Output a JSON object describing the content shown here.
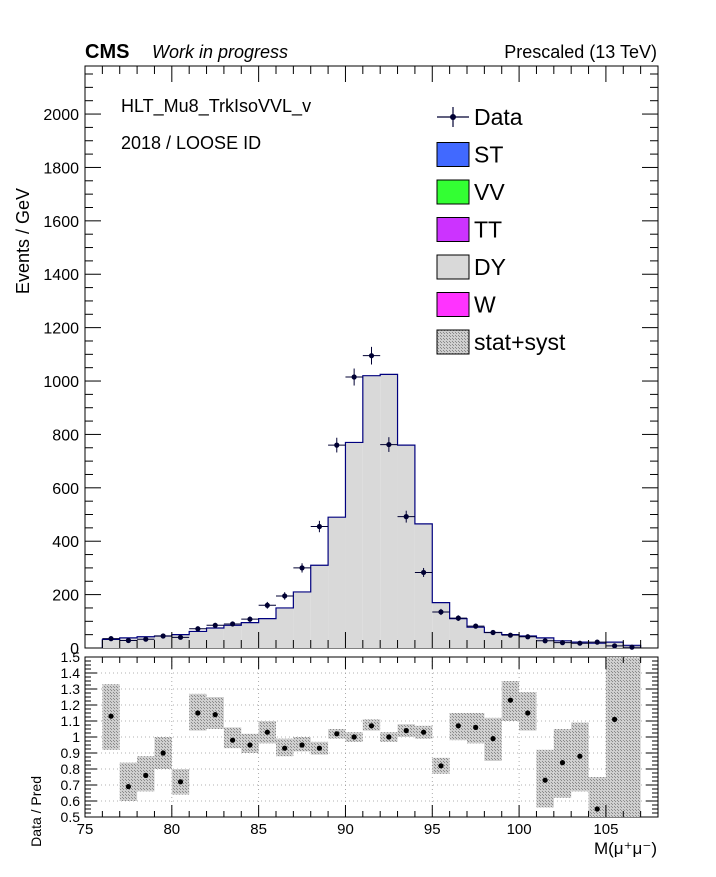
{
  "header": {
    "experiment": "CMS",
    "status": "Work in progress",
    "energy": "Prescaled (13 TeV)"
  },
  "annotations": {
    "trigger": "HLT_Mu8_TrkIsoVVL_v",
    "selection": "2018 / LOOSE ID"
  },
  "legend": [
    {
      "label": "Data",
      "kind": "marker",
      "color": "#000033"
    },
    {
      "label": "ST",
      "kind": "box",
      "color": "#4169ff"
    },
    {
      "label": "VV",
      "kind": "box",
      "color": "#33ff33"
    },
    {
      "label": "TT",
      "kind": "box",
      "color": "#cc33ff"
    },
    {
      "label": "DY",
      "kind": "box",
      "color": "#d9d9d9"
    },
    {
      "label": "W",
      "kind": "box",
      "color": "#ff33ff"
    },
    {
      "label": "stat+syst",
      "kind": "hatch",
      "color": "#bbbbbb"
    }
  ],
  "chart_data": [
    {
      "type": "bar",
      "ylabel": "Events / GeV",
      "xlim": [
        75,
        108
      ],
      "ylim": [
        0,
        2180
      ],
      "yticks": [
        0,
        200,
        400,
        600,
        800,
        1000,
        1200,
        1400,
        1600,
        1800,
        2000
      ],
      "bin_edges": [
        76,
        77,
        78,
        79,
        80,
        81,
        82,
        83,
        84,
        85,
        86,
        87,
        88,
        89,
        90,
        91,
        92,
        93,
        94,
        95,
        96,
        97,
        98,
        99,
        100,
        101,
        102,
        103,
        104,
        105,
        106,
        107
      ],
      "series": [
        {
          "name": "DY",
          "values": [
            32,
            38,
            42,
            45,
            50,
            62,
            75,
            85,
            95,
            110,
            150,
            210,
            310,
            490,
            770,
            1020,
            1025,
            760,
            465,
            170,
            110,
            78,
            58,
            50,
            45,
            38,
            27,
            22,
            18,
            22,
            10
          ]
        },
        {
          "name": "Data",
          "values": [
            35,
            28,
            33,
            45,
            40,
            72,
            85,
            90,
            108,
            160,
            195,
            300,
            455,
            760,
            1015,
            1095,
            762,
            492,
            283,
            135,
            112,
            82,
            58,
            48,
            42,
            27,
            20,
            18,
            22,
            8,
            3
          ]
        }
      ]
    },
    {
      "type": "scatter",
      "xlabel": "M(μ⁺μ⁻)",
      "ylabel": "Data / Pred",
      "xlim": [
        75,
        108
      ],
      "ylim": [
        0.5,
        1.5
      ],
      "xticks": [
        75,
        80,
        85,
        90,
        95,
        100,
        105
      ],
      "yticks": [
        0.5,
        0.6,
        0.7,
        0.8,
        0.9,
        1,
        1.1,
        1.2,
        1.3,
        1.4,
        1.5
      ],
      "x": [
        76.5,
        77.5,
        78.5,
        79.5,
        80.5,
        81.5,
        82.5,
        83.5,
        84.5,
        85.5,
        86.5,
        87.5,
        88.5,
        89.5,
        90.5,
        91.5,
        92.5,
        93.5,
        94.5,
        95.5,
        96.5,
        97.5,
        98.5,
        99.5,
        100.5,
        101.5,
        102.5,
        103.5,
        104.5,
        105.5,
        106.5
      ],
      "ratio": [
        1.13,
        0.69,
        0.76,
        0.9,
        0.72,
        1.15,
        1.14,
        0.98,
        0.95,
        1.03,
        0.93,
        0.95,
        0.93,
        1.02,
        1.0,
        1.07,
        1.0,
        1.04,
        1.03,
        0.82,
        1.07,
        1.06,
        0.99,
        1.23,
        1.15,
        0.73,
        0.84,
        0.88,
        0.55,
        1.11,
        0.4
      ],
      "band_low": [
        0.92,
        0.6,
        0.66,
        0.8,
        0.64,
        1.04,
        1.05,
        0.93,
        0.9,
        0.96,
        0.88,
        0.91,
        0.89,
        0.99,
        0.97,
        1.04,
        0.97,
        1.0,
        0.99,
        0.77,
        0.98,
        0.96,
        0.85,
        1.1,
        1.04,
        0.56,
        0.62,
        0.66,
        0.45,
        0.5,
        0.3
      ],
      "band_high": [
        1.33,
        0.84,
        0.88,
        1.0,
        0.8,
        1.27,
        1.25,
        1.06,
        1.02,
        1.1,
        0.99,
        1.0,
        0.97,
        1.05,
        1.03,
        1.11,
        1.03,
        1.08,
        1.07,
        0.87,
        1.15,
        1.15,
        1.12,
        1.35,
        1.28,
        0.92,
        1.05,
        1.09,
        0.75,
        1.5,
        1.5
      ]
    }
  ]
}
